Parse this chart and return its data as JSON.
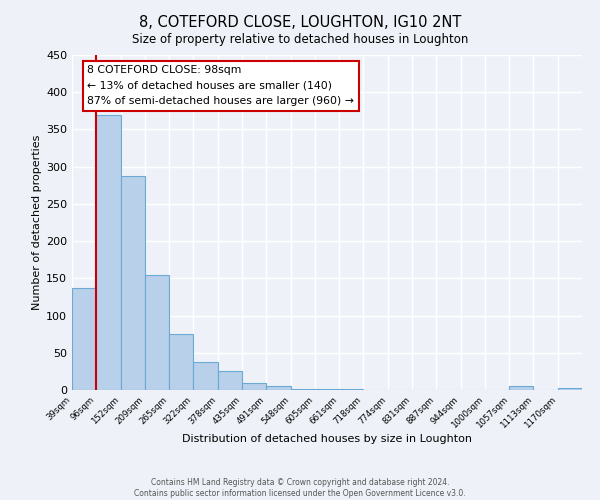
{
  "title": "8, COTEFORD CLOSE, LOUGHTON, IG10 2NT",
  "subtitle": "Size of property relative to detached houses in Loughton",
  "xlabel": "Distribution of detached houses by size in Loughton",
  "ylabel": "Number of detached properties",
  "bin_labels": [
    "39sqm",
    "96sqm",
    "152sqm",
    "209sqm",
    "265sqm",
    "322sqm",
    "378sqm",
    "435sqm",
    "491sqm",
    "548sqm",
    "605sqm",
    "661sqm",
    "718sqm",
    "774sqm",
    "831sqm",
    "887sqm",
    "944sqm",
    "1000sqm",
    "1057sqm",
    "1113sqm",
    "1170sqm"
  ],
  "bar_values": [
    137,
    370,
    288,
    155,
    75,
    38,
    25,
    10,
    5,
    2,
    2,
    1,
    0,
    0,
    0,
    0,
    0,
    0,
    5,
    0,
    3
  ],
  "bar_color": "#b8d0ea",
  "bar_edge_color": "#6aaad4",
  "vline_x": 1,
  "vline_color": "#cc0000",
  "annotation_title": "8 COTEFORD CLOSE: 98sqm",
  "annotation_line1": "← 13% of detached houses are smaller (140)",
  "annotation_line2": "87% of semi-detached houses are larger (960) →",
  "annotation_box_facecolor": "#ffffff",
  "annotation_box_edgecolor": "#cc0000",
  "ylim": [
    0,
    450
  ],
  "yticks": [
    0,
    50,
    100,
    150,
    200,
    250,
    300,
    350,
    400,
    450
  ],
  "footer_line1": "Contains HM Land Registry data © Crown copyright and database right 2024.",
  "footer_line2": "Contains public sector information licensed under the Open Government Licence v3.0.",
  "background_color": "#eef2f8",
  "grid_color": "#ffffff"
}
